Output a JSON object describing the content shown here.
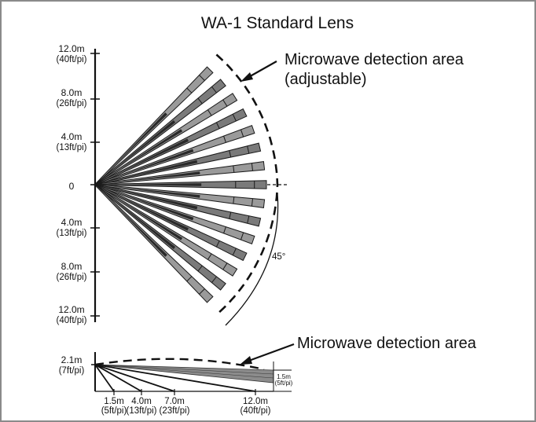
{
  "title": "WA-1 Standard Lens",
  "top_view": {
    "callout_line1": "Microwave detection area",
    "callout_line2": "(adjustable)",
    "angle_label": "45°",
    "zero_label": "0",
    "ticks": [
      {
        "value": "12.0m",
        "sub": "(40ft/pi)"
      },
      {
        "value": "8.0m",
        "sub": "(26ft/pi)"
      },
      {
        "value": "4.0m",
        "sub": "(13ft/pi)"
      },
      {
        "value": "4.0m",
        "sub": "(13ft/pi)"
      },
      {
        "value": "8.0m",
        "sub": "(26ft/pi)"
      },
      {
        "value": "12.0m",
        "sub": "(40ft/pi)"
      }
    ]
  },
  "side_view": {
    "callout": "Microwave detection area",
    "height_label": "2.1m",
    "height_sub": "(7ft/pi)",
    "end_height_label": "1.5m",
    "end_height_sub": "(5ft/pi)",
    "distances": [
      {
        "value": "1.5m",
        "sub": "(5ft/pi)"
      },
      {
        "value": "4.0m",
        "sub": "(13ft/pi)"
      },
      {
        "value": "7.0m",
        "sub": "(23ft/pi)"
      },
      {
        "value": "12.0m",
        "sub": "(40ft/pi)"
      }
    ]
  },
  "colors": {
    "frame": "#8a8a8a",
    "beam_light": "#a6a6a6",
    "beam_dark": "#6e6e6e",
    "line": "#111111"
  }
}
